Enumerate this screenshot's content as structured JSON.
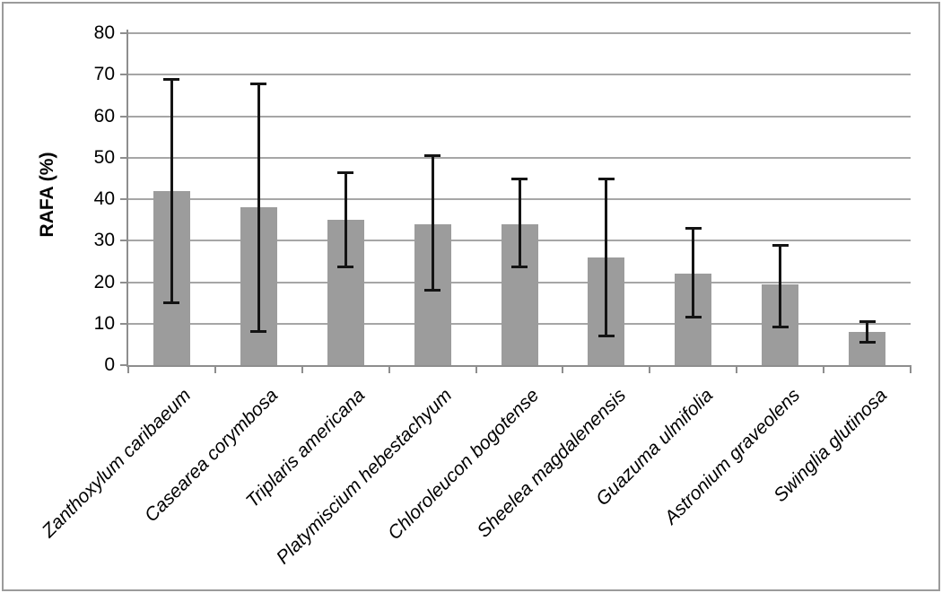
{
  "chart_data": {
    "type": "bar",
    "title": "",
    "xlabel": "",
    "ylabel": "RAFA (%)",
    "ylim": [
      0,
      80
    ],
    "ytick_step": 10,
    "yticks": [
      0,
      10,
      20,
      30,
      40,
      50,
      60,
      70,
      80
    ],
    "grid": "horizontal",
    "legend": "none",
    "categories": [
      "Zanthoxylum caribaeum",
      "Casearea corymbosa",
      "Triplaris americana",
      "Platymiscium hebestachyum",
      "Chloroleucon bogotense",
      "Sheelea magdalenensis",
      "Guazuma ulmifolia",
      "Astronium graveolens",
      "Swinglia glutinosa"
    ],
    "values": [
      42,
      38,
      35,
      34,
      34,
      26,
      22,
      19.5,
      8
    ],
    "error_high": [
      69,
      68,
      46.5,
      50.5,
      45,
      45,
      33,
      29,
      10.5
    ],
    "error_low": [
      15,
      8,
      23.5,
      18,
      23.5,
      7,
      11.5,
      9,
      5.5
    ],
    "colors": {
      "bar_fill": "#9c9c9c",
      "gridline": "#a6a6a6",
      "axis": "#8e8e8e",
      "error_bar": "#141414",
      "frame_border": "#9b9b9b",
      "text": "#000000"
    }
  }
}
